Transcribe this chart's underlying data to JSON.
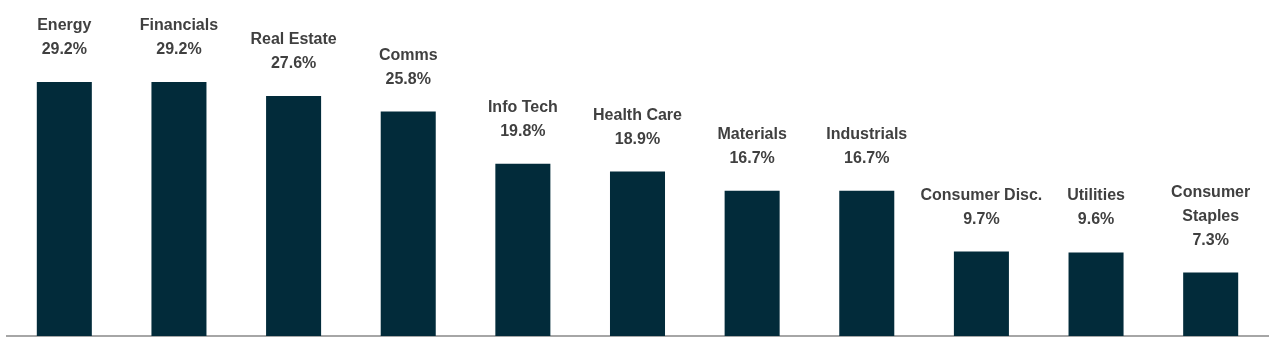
{
  "chart_data": {
    "type": "bar",
    "categories": [
      "Energy",
      "Financials",
      "Real Estate",
      "Comms",
      "Info Tech",
      "Health Care",
      "Materials",
      "Industrials",
      "Consumer Disc.",
      "Utilities",
      "Consumer Staples"
    ],
    "values": [
      29.2,
      29.2,
      27.6,
      25.8,
      19.8,
      18.9,
      16.7,
      16.7,
      9.7,
      9.6,
      7.3
    ],
    "value_labels": [
      "29.2%",
      "29.2%",
      "27.6%",
      "25.8%",
      "19.8%",
      "18.9%",
      "16.7%",
      "16.7%",
      "9.7%",
      "9.6%",
      "7.3%"
    ],
    "color": "#022b3a"
  }
}
